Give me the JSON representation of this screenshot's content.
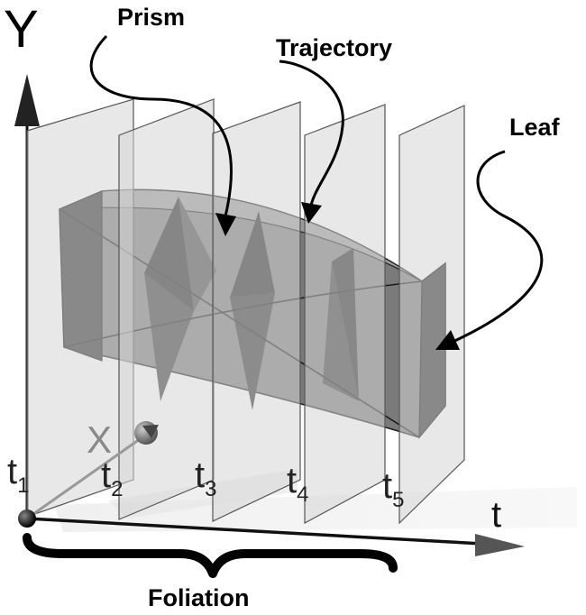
{
  "labels": {
    "prism": "Prism",
    "trajectory": "Trajectory",
    "leaf": "Leaf",
    "foliation": "Foliation"
  },
  "axes": {
    "y": "Y",
    "x": "X",
    "t": "t"
  },
  "time_slices": [
    {
      "base": "t",
      "sub": "1"
    },
    {
      "base": "t",
      "sub": "2"
    },
    {
      "base": "t",
      "sub": "3"
    },
    {
      "base": "t",
      "sub": "4"
    },
    {
      "base": "t",
      "sub": "5"
    }
  ],
  "colors": {
    "leaf": "#d6d6d6",
    "prism_front": "#7a7a7a",
    "prism_dark": "#2e2e2e",
    "axis": "#111111",
    "x_axis": "#8a8a8a"
  }
}
